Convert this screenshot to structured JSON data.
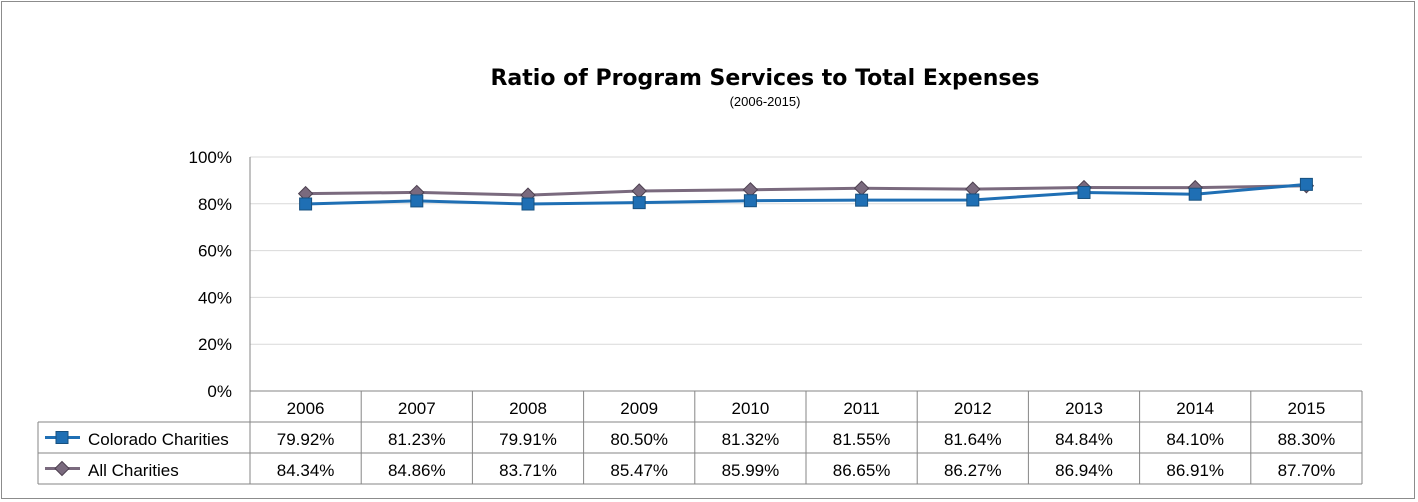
{
  "chart_data": {
    "type": "line",
    "title": "Ratio of Program Services to Total Expenses",
    "subtitle": "(2006-2015)",
    "categories": [
      "2006",
      "2007",
      "2008",
      "2009",
      "2010",
      "2011",
      "2012",
      "2013",
      "2014",
      "2015"
    ],
    "yticks": [
      "0%",
      "20%",
      "40%",
      "60%",
      "80%",
      "100%"
    ],
    "ylim": [
      0,
      100
    ],
    "grid": true,
    "legend": "data-table",
    "series": [
      {
        "name": "Colorado Charities",
        "marker": "square",
        "color": "#1f6fb4",
        "values": [
          79.92,
          81.23,
          79.91,
          80.5,
          81.32,
          81.55,
          81.64,
          84.84,
          84.1,
          88.3
        ],
        "labels": [
          "79.92%",
          "81.23%",
          "79.91%",
          "80.50%",
          "81.32%",
          "81.55%",
          "81.64%",
          "84.84%",
          "84.10%",
          "88.30%"
        ]
      },
      {
        "name": "All Charities",
        "marker": "diamond",
        "color": "#7a6a7e",
        "values": [
          84.34,
          84.86,
          83.71,
          85.47,
          85.99,
          86.65,
          86.27,
          86.94,
          86.91,
          87.7
        ],
        "labels": [
          "84.34%",
          "84.86%",
          "83.71%",
          "85.47%",
          "85.99%",
          "86.65%",
          "86.27%",
          "86.94%",
          "86.91%",
          "87.70%"
        ]
      }
    ]
  }
}
